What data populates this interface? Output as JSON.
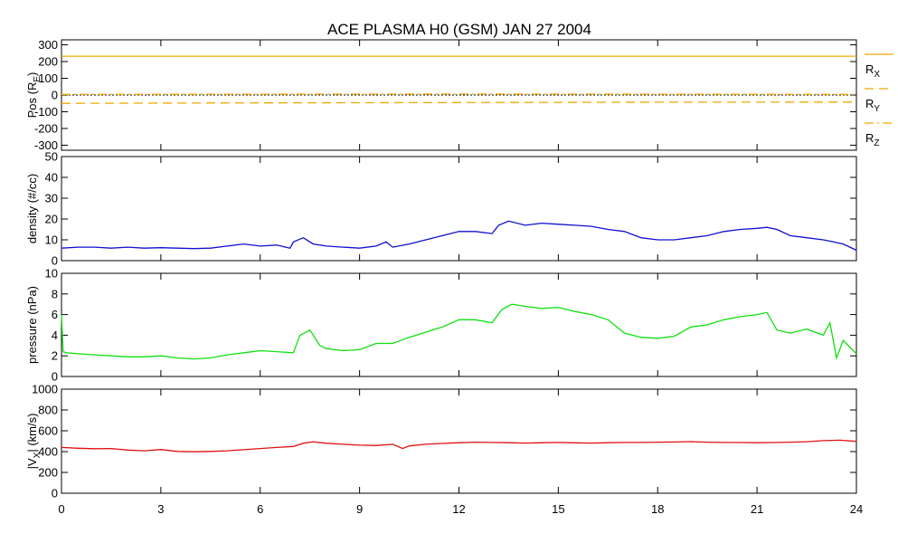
{
  "title": "ACE PLASMA H0 (GSM)   JAN 27 2004",
  "x_axis": {
    "ticks": [
      0,
      3,
      6,
      9,
      12,
      15,
      18,
      21,
      24
    ],
    "tick_labels": [
      "0",
      "3",
      "6",
      "9",
      "12",
      "15",
      "18",
      "21",
      "24"
    ],
    "range": [
      0,
      24
    ]
  },
  "legend": {
    "placement": "right-of-top-panel",
    "items": [
      {
        "label": "R",
        "sub": "X",
        "style": "solid"
      },
      {
        "label": "R",
        "sub": "Y",
        "style": "dashed"
      },
      {
        "label": "R",
        "sub": "Z",
        "style": "dashdot"
      }
    ]
  },
  "colors": {
    "position": "#f0a800",
    "density": "#1010d0",
    "pressure": "#10e010",
    "velocity": "#e01010",
    "zero_line": "#000000"
  },
  "chart_data": [
    {
      "type": "line",
      "id": "position",
      "ylabel": "Pos (R",
      "ylabel_sub": "E",
      "ylabel_tail": ")",
      "ylim": [
        -330,
        330
      ],
      "yticks": [
        300,
        200,
        100,
        0,
        -100,
        -200,
        -300
      ],
      "ytick_labels": [
        "300",
        "200",
        "100",
        "0",
        "-100",
        "-200",
        "-300"
      ],
      "zero_line": true,
      "series": [
        {
          "name": "RX",
          "style": "solid",
          "x": [
            0,
            24
          ],
          "values": [
            232,
            232
          ]
        },
        {
          "name": "RY",
          "style": "dashed",
          "x": [
            0,
            6,
            12,
            18,
            24
          ],
          "values": [
            -50,
            -47,
            -45,
            -43,
            -42
          ]
        },
        {
          "name": "RZ",
          "style": "dashdot",
          "x": [
            0,
            6,
            12,
            18,
            24
          ],
          "values": [
            4,
            5,
            6,
            5,
            4
          ]
        }
      ]
    },
    {
      "type": "line",
      "id": "density",
      "ylabel": "density (#/cc)",
      "ylim": [
        0,
        50
      ],
      "yticks": [
        0,
        10,
        20,
        30,
        40,
        50
      ],
      "ytick_labels": [
        "0",
        "10",
        "20",
        "30",
        "40",
        "50"
      ],
      "series": [
        {
          "name": "",
          "x": [
            0,
            0.5,
            1,
            1.5,
            2,
            2.5,
            3,
            3.5,
            4,
            4.5,
            5,
            5.5,
            6,
            6.5,
            6.9,
            7,
            7.3,
            7.6,
            8,
            8.5,
            9,
            9.5,
            9.8,
            10,
            10.5,
            11,
            11.5,
            12,
            12.5,
            13,
            13.2,
            13.5,
            14,
            14.5,
            15,
            15.5,
            16,
            16.5,
            17,
            17.5,
            18,
            18.5,
            19,
            19.5,
            20,
            20.5,
            21,
            21.3,
            21.6,
            22,
            22.5,
            23,
            23.3,
            23.6,
            24
          ],
          "values": [
            6,
            6.5,
            6.5,
            6,
            6.5,
            6,
            6.2,
            6,
            5.8,
            6,
            7,
            8,
            7,
            7.5,
            6,
            9,
            11,
            8,
            7,
            6.5,
            6,
            7,
            9,
            6.5,
            8,
            10,
            12,
            14,
            14,
            13,
            17,
            19,
            17,
            18,
            17.5,
            17,
            16.5,
            15,
            14,
            11,
            10,
            10,
            11,
            12,
            14,
            15,
            15.5,
            16,
            15,
            12,
            11,
            10,
            9,
            8,
            5
          ]
        }
      ]
    },
    {
      "type": "line",
      "id": "pressure",
      "ylabel": "pressure (nPa)",
      "ylim": [
        0,
        10
      ],
      "yticks": [
        0,
        2,
        4,
        6,
        8,
        10
      ],
      "ytick_labels": [
        "0",
        "2",
        "4",
        "6",
        "8",
        "10"
      ],
      "series": [
        {
          "name": "",
          "x": [
            0,
            0.05,
            0.15,
            0.5,
            1,
            1.5,
            2,
            2.5,
            3,
            3.5,
            4,
            4.5,
            5,
            5.5,
            6,
            6.5,
            7,
            7.2,
            7.5,
            7.8,
            8,
            8.5,
            9,
            9.5,
            10,
            10.5,
            11,
            11.5,
            12,
            12.5,
            13,
            13.3,
            13.6,
            14,
            14.5,
            15,
            15.5,
            16,
            16.5,
            17,
            17.5,
            18,
            18.5,
            19,
            19.5,
            20,
            20.5,
            21,
            21.3,
            21.6,
            22,
            22.5,
            23,
            23.2,
            23.4,
            23.6,
            24
          ],
          "values": [
            6,
            2.4,
            2.3,
            2.2,
            2.1,
            2,
            1.9,
            1.9,
            2,
            1.8,
            1.7,
            1.8,
            2.1,
            2.3,
            2.5,
            2.4,
            2.3,
            4,
            4.5,
            3,
            2.7,
            2.5,
            2.6,
            3.2,
            3.2,
            3.8,
            4.3,
            4.8,
            5.5,
            5.5,
            5.2,
            6.5,
            7,
            6.8,
            6.6,
            6.7,
            6.3,
            6,
            5.5,
            4.2,
            3.8,
            3.7,
            3.9,
            4.8,
            5,
            5.5,
            5.8,
            6,
            6.2,
            4.5,
            4.2,
            4.6,
            4,
            5.2,
            1.8,
            3.5,
            2.2
          ]
        }
      ]
    },
    {
      "type": "line",
      "id": "velocity",
      "ylabel": "|V",
      "ylabel_sub": "X",
      "ylabel_tail": "| (km/s)",
      "ylim": [
        0,
        1000
      ],
      "yticks": [
        0,
        200,
        400,
        600,
        800,
        1000
      ],
      "ytick_labels": [
        "0",
        "200",
        "400",
        "600",
        "800",
        "1000"
      ],
      "series": [
        {
          "name": "",
          "x": [
            0,
            0.5,
            1,
            1.5,
            2,
            2.5,
            3,
            3.5,
            4,
            4.5,
            5,
            5.5,
            6,
            6.5,
            7,
            7.3,
            7.6,
            8,
            8.5,
            9,
            9.5,
            10,
            10.3,
            10.5,
            11,
            11.5,
            12,
            12.5,
            13,
            13.5,
            14,
            14.5,
            15,
            15.5,
            16,
            16.5,
            17,
            17.5,
            18,
            18.5,
            19,
            19.5,
            20,
            20.5,
            21,
            21.5,
            22,
            22.5,
            23,
            23.5,
            24
          ],
          "values": [
            440,
            432,
            428,
            430,
            415,
            408,
            420,
            402,
            398,
            402,
            408,
            418,
            430,
            440,
            450,
            480,
            495,
            480,
            470,
            462,
            458,
            470,
            430,
            455,
            470,
            478,
            485,
            490,
            488,
            485,
            482,
            485,
            488,
            484,
            482,
            485,
            488,
            488,
            490,
            492,
            496,
            490,
            488,
            487,
            485,
            487,
            490,
            495,
            505,
            510,
            498
          ]
        }
      ]
    }
  ]
}
